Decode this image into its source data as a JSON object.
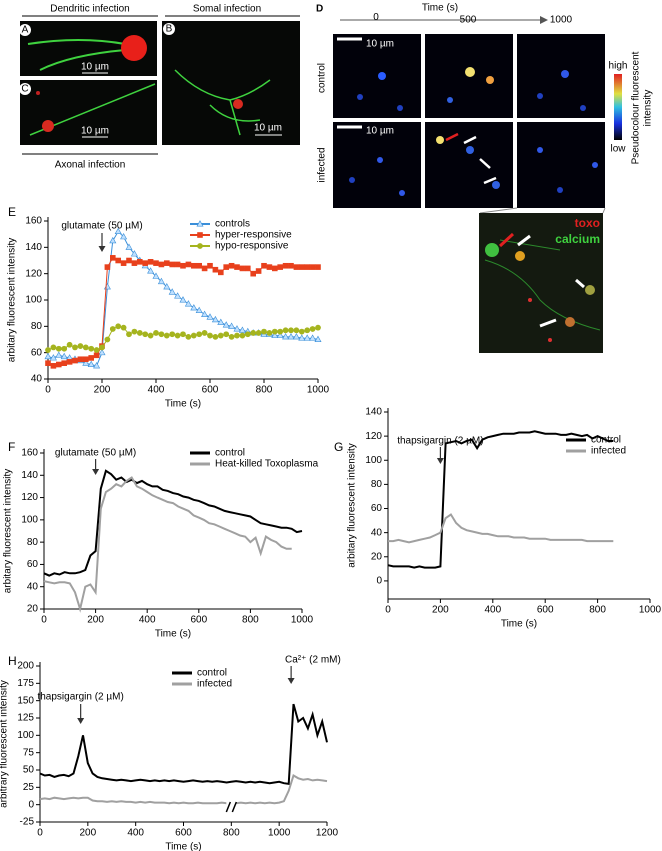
{
  "images": {
    "abc": {
      "dendritic_title": "Dendritic infection",
      "somal_title": "Somal infection",
      "axonal_caption": "Axonal infection",
      "label_a": "A",
      "label_b": "B",
      "label_c": "C",
      "scale_a": "10 µm",
      "scale_b": "10 µm",
      "scale_c": "10 µm"
    },
    "d": {
      "label": "D",
      "time_axis_title": "Time (s)",
      "times": [
        "0",
        "500",
        "1000"
      ],
      "scale_control": "10 µm",
      "scale_infected": "10 µm",
      "row_labels": [
        "control",
        "infected"
      ],
      "colorbar_high": "high",
      "colorbar_low": "low",
      "colorbar_title": [
        "Pseudocolour fluorescent",
        "intensity"
      ],
      "inset_toxo": "toxo",
      "inset_calcium": "calcium"
    }
  },
  "chart_data": [
    {
      "type": "line",
      "panel_label": "E",
      "x_label": "Time (s)",
      "y_label": "arbitary fluorescent intensity",
      "annotations": [
        "glutamate (50 µM)"
      ],
      "legend": "upper right",
      "x": [
        0,
        20,
        40,
        60,
        80,
        100,
        120,
        140,
        160,
        180,
        200,
        220,
        240,
        260,
        280,
        300,
        320,
        340,
        360,
        380,
        400,
        420,
        440,
        460,
        480,
        500,
        520,
        540,
        560,
        580,
        600,
        620,
        640,
        660,
        680,
        700,
        720,
        740,
        760,
        780,
        800,
        820,
        840,
        860,
        880,
        900,
        920,
        940,
        960,
        980,
        1000
      ],
      "xlim": [
        0,
        1000
      ],
      "xticks": [
        0,
        200,
        400,
        600,
        800,
        1000
      ],
      "ylim": [
        40,
        160
      ],
      "yticks": [
        40,
        60,
        80,
        100,
        120,
        140,
        160
      ],
      "series": [
        {
          "name": "controls",
          "color": "#3a8fd9",
          "marker": "triangle",
          "values": [
            57,
            56,
            58,
            57,
            56,
            55,
            54,
            52,
            51,
            50,
            60,
            110,
            145,
            152,
            148,
            140,
            135,
            130,
            126,
            122,
            118,
            114,
            110,
            106,
            103,
            100,
            97,
            94,
            92,
            89,
            87,
            85,
            83,
            81,
            80,
            78,
            77,
            76,
            75,
            75,
            74,
            74,
            73,
            73,
            72,
            72,
            72,
            71,
            71,
            71,
            70
          ]
        },
        {
          "name": "hyper-responsive",
          "color": "#e8401c",
          "marker": "square",
          "values": [
            52,
            50,
            51,
            52,
            53,
            54,
            55,
            55,
            56,
            58,
            65,
            125,
            132,
            130,
            128,
            130,
            128,
            129,
            128,
            129,
            128,
            127,
            128,
            127,
            127,
            126,
            127,
            126,
            126,
            124,
            126,
            123,
            121,
            125,
            126,
            125,
            124,
            124,
            120,
            122,
            126,
            125,
            124,
            125,
            126,
            126,
            125,
            125,
            125,
            125,
            125
          ]
        },
        {
          "name": "hypo-responsive",
          "color": "#a5b41e",
          "marker": "circle",
          "values": [
            62,
            64,
            63,
            63,
            66,
            64,
            65,
            64,
            63,
            62,
            64,
            70,
            78,
            80,
            79,
            74,
            76,
            75,
            74,
            73,
            75,
            74,
            73,
            74,
            73,
            74,
            72,
            73,
            74,
            75,
            73,
            72,
            73,
            74,
            72,
            73,
            73,
            74,
            75,
            75,
            76,
            75,
            76,
            76,
            77,
            77,
            77,
            76,
            77,
            78,
            79
          ]
        }
      ]
    },
    {
      "type": "line",
      "panel_label": "F",
      "x_label": "Time (s)",
      "y_label": "arbitary fluorescent intensity",
      "annotations": [
        "glutamate (50 µM)"
      ],
      "legend": "upper right",
      "x": [
        0,
        20,
        40,
        60,
        80,
        100,
        120,
        140,
        160,
        180,
        200,
        220,
        240,
        260,
        280,
        300,
        320,
        340,
        360,
        380,
        400,
        420,
        440,
        460,
        480,
        500,
        520,
        540,
        560,
        580,
        600,
        620,
        640,
        660,
        680,
        700,
        720,
        740,
        760,
        780,
        800,
        820,
        840,
        860,
        880,
        900,
        920,
        940,
        960,
        980,
        1000
      ],
      "xlim": [
        0,
        1000
      ],
      "xticks": [
        0,
        200,
        400,
        600,
        800,
        1000
      ],
      "ylim": [
        20,
        160
      ],
      "yticks": [
        20,
        40,
        60,
        80,
        100,
        120,
        140,
        160
      ],
      "series": [
        {
          "name": "control",
          "color": "#000000",
          "values": [
            52,
            50,
            52,
            51,
            53,
            52,
            52,
            53,
            55,
            68,
            72,
            128,
            144,
            141,
            136,
            138,
            134,
            136,
            133,
            135,
            132,
            130,
            130,
            127,
            126,
            124,
            123,
            121,
            120,
            118,
            117,
            115,
            113,
            112,
            110,
            108,
            107,
            106,
            105,
            104,
            103,
            100,
            97,
            96,
            95,
            94,
            93,
            93,
            92,
            89,
            90
          ]
        },
        {
          "name": "Heat-killed Toxoplasma",
          "color": "#a0a0a0",
          "values": [
            45,
            44,
            43,
            44,
            44,
            43,
            35,
            20,
            40,
            42,
            35,
            110,
            125,
            128,
            132,
            130,
            135,
            138,
            130,
            128,
            125,
            122,
            120,
            118,
            116,
            115,
            112,
            110,
            108,
            104,
            102,
            100,
            97,
            96,
            94,
            92,
            90,
            88,
            86,
            85,
            80,
            84,
            70,
            85,
            82,
            80,
            76,
            74,
            74,
            null,
            null
          ]
        }
      ]
    },
    {
      "type": "line",
      "panel_label": "G",
      "x_label": "Time (s)",
      "y_label": "arbitary fluorescent intensity",
      "annotations": [
        "thapsigargin (2 µM)"
      ],
      "legend": "upper right",
      "x": [
        0,
        20,
        40,
        60,
        80,
        100,
        120,
        140,
        160,
        180,
        200,
        220,
        240,
        260,
        280,
        300,
        320,
        340,
        360,
        380,
        400,
        420,
        440,
        460,
        480,
        500,
        520,
        540,
        560,
        580,
        600,
        620,
        640,
        660,
        680,
        700,
        720,
        740,
        760,
        780,
        800,
        820,
        840,
        860
      ],
      "xlim": [
        0,
        1000
      ],
      "xticks": [
        0,
        200,
        400,
        600,
        800,
        1000
      ],
      "ylim": [
        -15,
        140
      ],
      "yticks": [
        0,
        20,
        40,
        60,
        80,
        100,
        120,
        140
      ],
      "series": [
        {
          "name": "control",
          "color": "#000000",
          "values": [
            13,
            12,
            12,
            12,
            12,
            11,
            12,
            11,
            11,
            11,
            12,
            114,
            115,
            116,
            114,
            116,
            117,
            110,
            117,
            119,
            120,
            121,
            122,
            122,
            122,
            123,
            123,
            123,
            124,
            123,
            122,
            122,
            122,
            121,
            121,
            122,
            121,
            120,
            121,
            118,
            120,
            118,
            116,
            116
          ]
        },
        {
          "name": "infected",
          "color": "#a0a0a0",
          "values": [
            33,
            33,
            34,
            33,
            32,
            33,
            34,
            35,
            36,
            38,
            40,
            52,
            55,
            48,
            44,
            42,
            41,
            40,
            39,
            39,
            38,
            37,
            37,
            37,
            36,
            36,
            36,
            35,
            35,
            35,
            35,
            34,
            34,
            34,
            34,
            34,
            34,
            34,
            33,
            33,
            33,
            33,
            33,
            33
          ]
        }
      ]
    },
    {
      "type": "line",
      "panel_label": "H",
      "x_label": "Time (s)",
      "y_label": "arbitrary fluorescent intensity",
      "annotations": [
        "thapsigargin (2 µM)",
        "Ca²⁺ (2 mM)"
      ],
      "legend": "upper center",
      "x": [
        0,
        20,
        40,
        60,
        80,
        100,
        120,
        140,
        160,
        180,
        200,
        220,
        240,
        260,
        280,
        300,
        320,
        340,
        360,
        380,
        400,
        420,
        440,
        460,
        480,
        500,
        520,
        540,
        560,
        580,
        600,
        620,
        640,
        660,
        680,
        700,
        720,
        740,
        760,
        780,
        800,
        820,
        840,
        860,
        880,
        900,
        920,
        940,
        960,
        980,
        1000,
        1020,
        1040,
        1060,
        1080,
        1100,
        1120,
        1140,
        1160,
        1180,
        1200
      ],
      "xlim": [
        0,
        1200
      ],
      "xticks": [
        0,
        200,
        400,
        600,
        800,
        1000,
        1200
      ],
      "ylim": [
        -25,
        200
      ],
      "yticks": [
        -25,
        0,
        25,
        50,
        75,
        100,
        125,
        150,
        175,
        200
      ],
      "series": [
        {
          "name": "control",
          "color": "#000000",
          "values": [
            45,
            42,
            43,
            40,
            42,
            43,
            41,
            45,
            70,
            100,
            60,
            45,
            40,
            38,
            37,
            36,
            35,
            36,
            35,
            34,
            35,
            36,
            35,
            34,
            35,
            34,
            35,
            34,
            35,
            34,
            33,
            34,
            35,
            34,
            33,
            34,
            33,
            34,
            33,
            32,
            33,
            34,
            33,
            32,
            33,
            32,
            33,
            32,
            31,
            32,
            33,
            31,
            30,
            145,
            120,
            125,
            110,
            130,
            100,
            120,
            90
          ]
        },
        {
          "name": "infected",
          "color": "#a0a0a0",
          "values": [
            8,
            9,
            8,
            10,
            9,
            8,
            9,
            10,
            9,
            10,
            10,
            6,
            5,
            5,
            4,
            5,
            4,
            5,
            4,
            4,
            3,
            4,
            3,
            4,
            3,
            3,
            3,
            2,
            3,
            2,
            3,
            2,
            2,
            3,
            2,
            2,
            2,
            2,
            3,
            2,
            2,
            2,
            3,
            2,
            3,
            2,
            3,
            2,
            3,
            2,
            3,
            5,
            20,
            42,
            38,
            36,
            37,
            35,
            36,
            35,
            34
          ]
        }
      ]
    }
  ]
}
